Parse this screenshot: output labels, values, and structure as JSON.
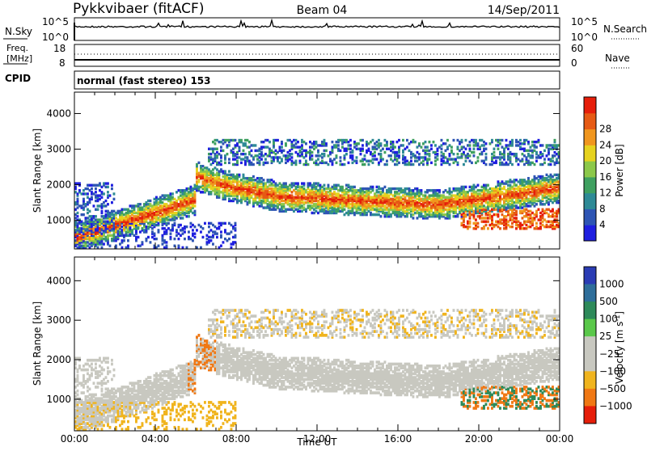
{
  "header": {
    "station": "Pykkvibaer (fitACF)",
    "beam": "Beam 04",
    "date": "14/Sep/2011"
  },
  "noise_panel": {
    "left_label": "N.Sky",
    "right_label": "N.Search",
    "left_ticks": [
      "10^5",
      "10^0"
    ],
    "right_ticks": [
      "10^5",
      "10^0"
    ]
  },
  "freq_panel": {
    "left_label_1": "Freq.",
    "left_label_2": "[MHz]",
    "right_label": "Nave",
    "left_ticks": [
      "18",
      "8"
    ],
    "right_ticks": [
      "60",
      "0"
    ]
  },
  "cpid": {
    "label": "CPID",
    "text": "normal (fast stereo) 153"
  },
  "chart_data": [
    {
      "type": "heatmap",
      "name": "power",
      "ylabel": "Slant Range [km]",
      "ylim": [
        200,
        4600
      ],
      "yticks": [
        "1000",
        "2000",
        "3000",
        "4000"
      ],
      "xlim": [
        0,
        24
      ],
      "xticks": [
        "00:00",
        "04:00",
        "08:00",
        "12:00",
        "16:00",
        "20:00",
        "00:00"
      ],
      "colorbar": {
        "label": "Power [dB]",
        "ticks": [
          "4",
          "8",
          "12",
          "16",
          "20",
          "24",
          "28"
        ],
        "colors": [
          "#1f1fe0",
          "#2e55b4",
          "#2e8a96",
          "#3fa060",
          "#8cc84a",
          "#e6d21e",
          "#f0961e",
          "#e65a14",
          "#e61e0a"
        ]
      }
    },
    {
      "type": "heatmap",
      "name": "velocity",
      "ylabel": "Slant Range [km]",
      "ylim": [
        200,
        4600
      ],
      "yticks": [
        "1000",
        "2000",
        "3000",
        "4000"
      ],
      "xlim": [
        0,
        24
      ],
      "xticks": [
        "00:00",
        "04:00",
        "08:00",
        "12:00",
        "16:00",
        "20:00",
        "00:00"
      ],
      "xlabel": "Time UT",
      "colorbar": {
        "label": "Velocity [m s",
        "label_sup": "-1",
        "label_end": "]",
        "ticks": [
          "1000",
          "500",
          "100",
          "25",
          "−25",
          "−100",
          "−500",
          "−1000"
        ],
        "colors": [
          "#2a3cb4",
          "#2e6e9a",
          "#2e8a5a",
          "#5ac84a",
          "#c8c8c0",
          "#c8c8c0",
          "#f0b41e",
          "#f07814",
          "#e61e0a"
        ]
      }
    }
  ]
}
